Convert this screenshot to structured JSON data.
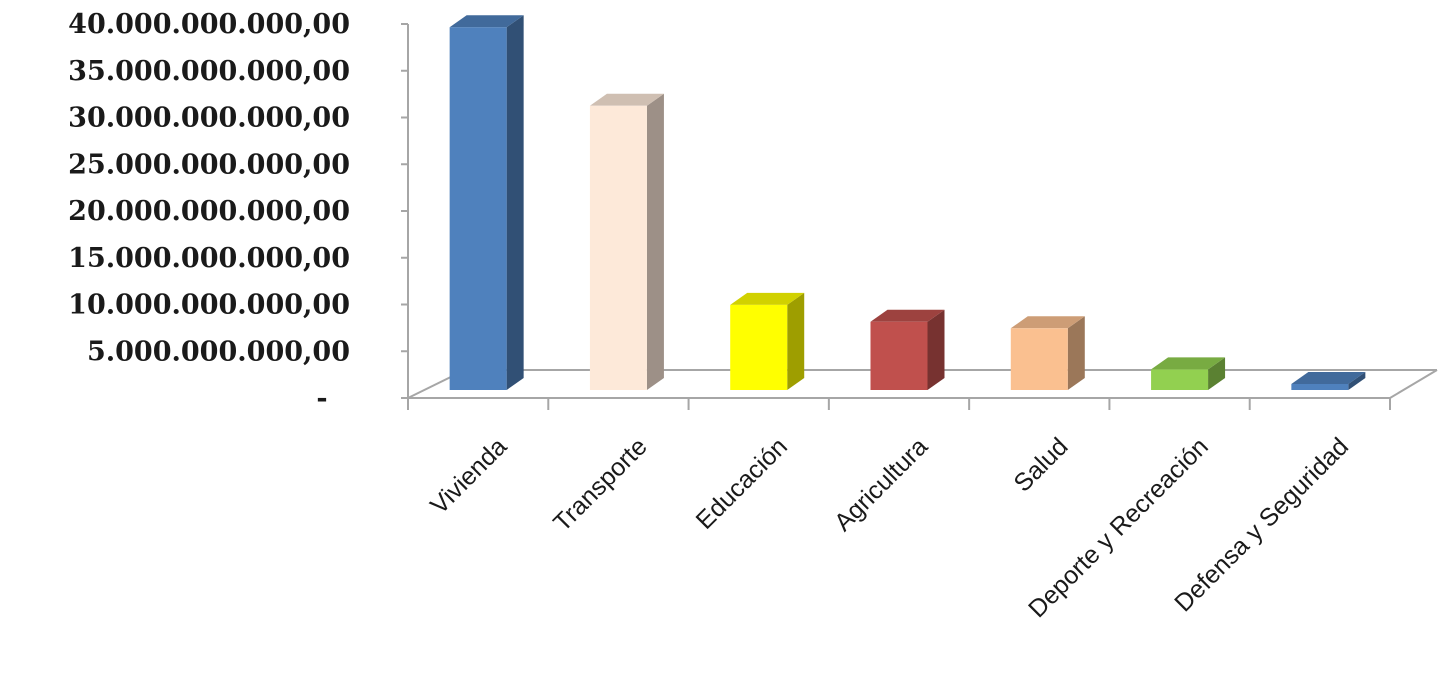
{
  "chart_data": {
    "type": "bar",
    "style": "3d-column",
    "categories": [
      "Vivienda",
      "Transporte",
      "Educación",
      "Agricultura",
      "Salud",
      "Deporte y Recreación",
      "Defensa y Seguridad"
    ],
    "values": [
      38800000000,
      30400000000,
      9100000000,
      7300000000,
      6600000000,
      2200000000,
      500000000
    ],
    "colors": [
      "#4f81bd",
      "#fde9d9",
      "#ffff00",
      "#c0504d",
      "#fac090",
      "#92d050",
      "#4f81bd"
    ],
    "ylim": [
      0,
      40000000000
    ],
    "yticks": [
      0,
      5000000000,
      10000000000,
      15000000000,
      20000000000,
      25000000000,
      30000000000,
      35000000000,
      40000000000
    ],
    "ytick_labels": [
      "-",
      "5.000.000.000,00",
      "10.000.000.000,00",
      "15.000.000.000,00",
      "20.000.000.000,00",
      "25.000.000.000,00",
      "30.000.000.000,00",
      "35.000.000.000,00",
      "40.000.000.000,00"
    ],
    "title": "",
    "xlabel": "",
    "ylabel": "",
    "grid": false,
    "legend": "none"
  }
}
